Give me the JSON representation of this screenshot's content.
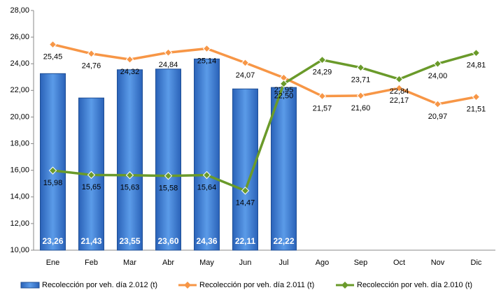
{
  "chart_data": {
    "type": "bar",
    "categories": [
      "Ene",
      "Feb",
      "Mar",
      "Abr",
      "May",
      "Jun",
      "Jul",
      "Ago",
      "Sep",
      "Oct",
      "Nov",
      "Dic"
    ],
    "series": [
      {
        "name": "Recolección por veh. día 2.012 (t)",
        "type": "bar",
        "color": "#3a7bd5",
        "values": [
          23.26,
          21.43,
          23.55,
          23.6,
          24.36,
          22.11,
          22.22,
          null,
          null,
          null,
          null,
          null
        ],
        "value_labels": [
          "23,26",
          "21,43",
          "23,55",
          "23,60",
          "24,36",
          "22,11",
          "22,22",
          null,
          null,
          null,
          null,
          null
        ]
      },
      {
        "name": "Recolección por veh. día 2.011 (t)",
        "type": "line",
        "color": "#f79646",
        "values": [
          25.45,
          24.76,
          24.32,
          24.84,
          25.14,
          24.07,
          22.95,
          21.57,
          21.6,
          22.17,
          20.97,
          21.51
        ],
        "value_labels": [
          "25,45",
          "24,76",
          "24,32",
          "24,84",
          "25,14",
          "24,07",
          "22,95",
          "21,57",
          "21,60",
          "22,17",
          "20,97",
          "21,51"
        ]
      },
      {
        "name": "Recolección por veh. día 2.010 (t)",
        "type": "line",
        "color": "#6a9a2a",
        "values": [
          15.98,
          15.65,
          15.63,
          15.58,
          15.64,
          14.47,
          22.5,
          24.29,
          23.71,
          22.84,
          24.0,
          24.81
        ],
        "value_labels": [
          "15,98",
          "15,65",
          "15,63",
          "15,58",
          "15,64",
          "14,47",
          "22,50",
          "24,29",
          "23,71",
          "22,84",
          "24,00",
          "24,81"
        ]
      }
    ],
    "ylim": [
      10,
      28
    ],
    "yticks": [
      {
        "value": 10,
        "label": "10,00"
      },
      {
        "value": 12,
        "label": "12,00"
      },
      {
        "value": 14,
        "label": "14,00"
      },
      {
        "value": 16,
        "label": "16,00"
      },
      {
        "value": 18,
        "label": "18,00"
      },
      {
        "value": 20,
        "label": "20,00"
      },
      {
        "value": 22,
        "label": "22,00"
      },
      {
        "value": 24,
        "label": "24,00"
      },
      {
        "value": 26,
        "label": "26,00"
      },
      {
        "value": 28,
        "label": "28,00"
      }
    ],
    "grid": false,
    "legend": "bottom"
  }
}
